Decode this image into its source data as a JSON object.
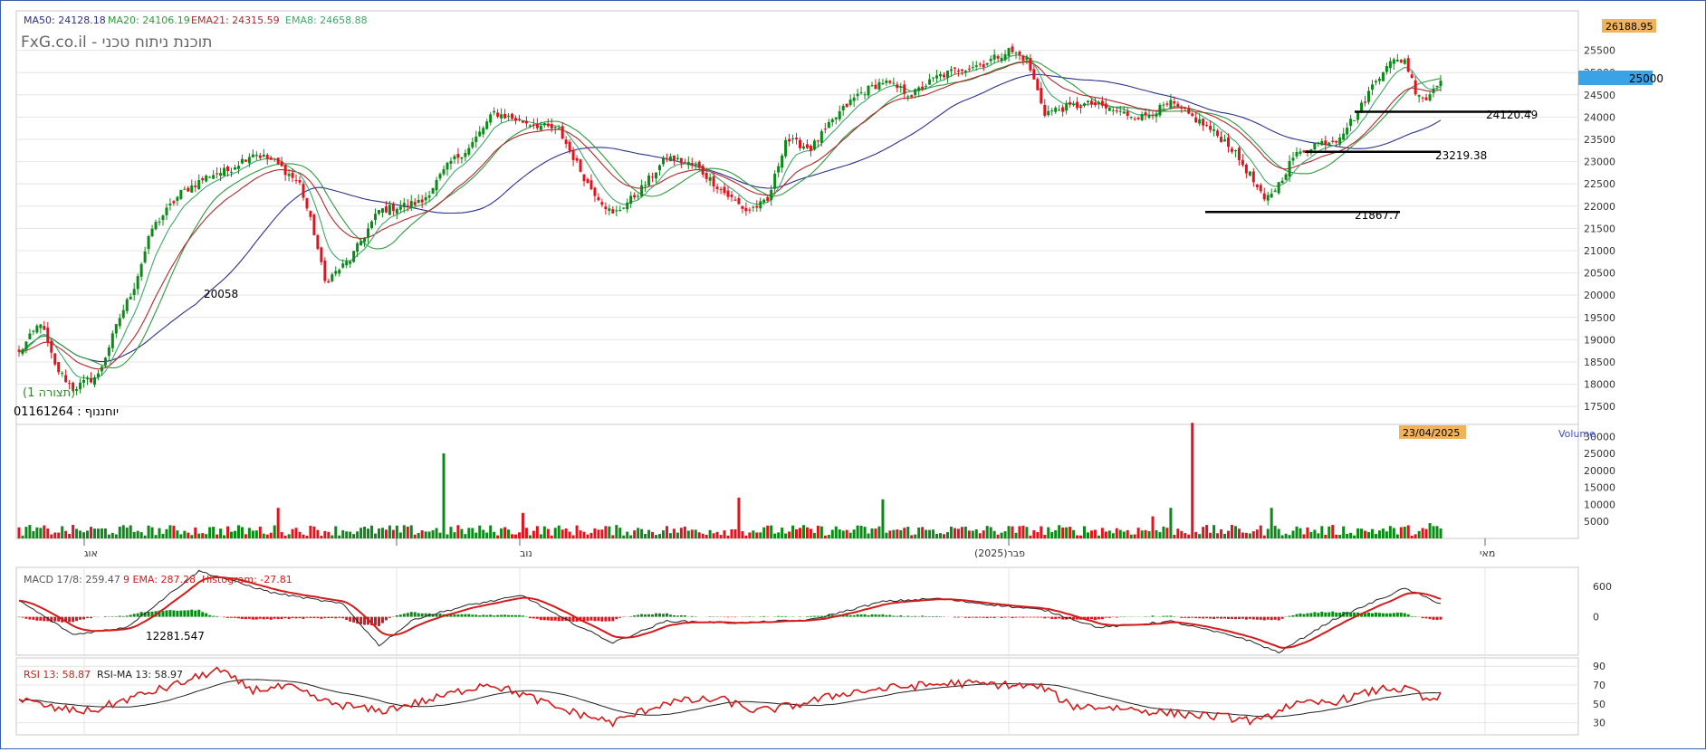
{
  "colors": {
    "bull": "#0a8a16",
    "bear": "#e0141e",
    "ma50": "#2b2f8c",
    "ma20": "#2e9a3e",
    "ema21": "#b0282e",
    "ema8": "#3fa86a",
    "macd": "#222222",
    "signal": "#d41a1a",
    "rsi": "#d41a1a",
    "rsi_ma": "#222222",
    "price_tag_bg": "#f0b25a",
    "last_tag_bg": "#3aa3e6",
    "grid": "#e4e4e4",
    "frame": "#3a5ea8"
  },
  "header": {
    "ma50": "MA50: 24128.18",
    "ma20": "MA20: 24106.19",
    "ema21": "EMA21: 24315.59",
    "ema8": "EMA8: 24658.88",
    "brand": "FxG.co.il - תוכנת ניתוח טכני"
  },
  "price_panel": {
    "top_value_tag": "26188.95",
    "last_price_tag": "25000",
    "y_ticks": [
      "25500",
      "25000",
      "24500",
      "24000",
      "23500",
      "23000",
      "22500",
      "22000",
      "21500",
      "21000",
      "20500",
      "20000",
      "19500",
      "19000",
      "18500",
      "18000",
      "17500"
    ],
    "lines": [
      {
        "label": "24120.49",
        "value": 24120.49
      },
      {
        "label": "23219.38",
        "value": 23219.38
      },
      {
        "label": "21867.7",
        "value": 21867.7
      }
    ],
    "annotation_low": "20058",
    "info_line1": "(תצורה 1)",
    "info_line2": "יוחננוף : 01161264"
  },
  "volume_panel": {
    "label": "Volume",
    "date_tag": "23/04/2025",
    "y_ticks": [
      "30000",
      "25000",
      "20000",
      "15000",
      "10000",
      "5000"
    ]
  },
  "x_axis": {
    "labels": [
      "אוג",
      "נוב",
      "פבר(2025)",
      "מאי"
    ]
  },
  "macd_panel": {
    "macd_label": "MACD 17/8: 259.47",
    "ema_label": "9 EMA: 287.28",
    "hist_label": "Histogram: -27.81",
    "y_ticks": [
      "600",
      "0"
    ],
    "annotation": "12281.547"
  },
  "rsi_panel": {
    "rsi_label": "RSI 13: 58.87",
    "rsi_ma_label": "RSI-MA 13: 58.97",
    "y_ticks": [
      "90",
      "70",
      "50",
      "30"
    ]
  },
  "chart_data": [
    {
      "type": "candlestick",
      "title": "",
      "ylim": [
        17000,
        26200
      ],
      "grid": true,
      "anchor_values": [
        [
          0,
          18700
        ],
        [
          6,
          19400
        ],
        [
          10,
          18400
        ],
        [
          15,
          17900
        ],
        [
          22,
          18200
        ],
        [
          28,
          19500
        ],
        [
          32,
          20200
        ],
        [
          37,
          21500
        ],
        [
          45,
          22300
        ],
        [
          53,
          22700
        ],
        [
          58,
          22800
        ],
        [
          65,
          23200
        ],
        [
          71,
          23000
        ],
        [
          78,
          22500
        ],
        [
          82,
          21400
        ],
        [
          85,
          20300
        ],
        [
          92,
          20800
        ],
        [
          100,
          21900
        ],
        [
          112,
          22100
        ],
        [
          120,
          23000
        ],
        [
          125,
          23300
        ],
        [
          132,
          24100
        ],
        [
          140,
          23900
        ],
        [
          150,
          23700
        ],
        [
          158,
          22500
        ],
        [
          165,
          21800
        ],
        [
          172,
          22300
        ],
        [
          180,
          23100
        ],
        [
          188,
          22900
        ],
        [
          196,
          22300
        ],
        [
          202,
          21900
        ],
        [
          208,
          22100
        ],
        [
          213,
          23500
        ],
        [
          220,
          23300
        ],
        [
          228,
          24100
        ],
        [
          233,
          24500
        ],
        [
          240,
          24800
        ],
        [
          248,
          24500
        ],
        [
          255,
          24900
        ],
        [
          262,
          25100
        ],
        [
          268,
          25200
        ],
        [
          275,
          25500
        ],
        [
          280,
          25300
        ],
        [
          285,
          24100
        ],
        [
          290,
          24200
        ],
        [
          298,
          24300
        ],
        [
          306,
          24100
        ],
        [
          312,
          24000
        ],
        [
          320,
          24300
        ],
        [
          328,
          23900
        ],
        [
          336,
          23400
        ],
        [
          342,
          22700
        ],
        [
          346,
          22100
        ],
        [
          350,
          22500
        ],
        [
          354,
          23100
        ],
        [
          360,
          23400
        ],
        [
          366,
          23500
        ],
        [
          372,
          24100
        ],
        [
          376,
          24700
        ],
        [
          380,
          25200
        ],
        [
          385,
          25300
        ],
        [
          388,
          24600
        ],
        [
          391,
          24400
        ],
        [
          395,
          24900
        ]
      ],
      "n_bars": 396
    },
    {
      "type": "bar",
      "title": "Volume",
      "ylim": [
        0,
        33000
      ],
      "spikes": [
        [
          72,
          9000
        ],
        [
          118,
          25000
        ],
        [
          140,
          7500
        ],
        [
          200,
          12000
        ],
        [
          240,
          11500
        ],
        [
          315,
          6500
        ],
        [
          320,
          9000
        ],
        [
          326,
          34000
        ],
        [
          348,
          9000
        ],
        [
          392,
          4500
        ]
      ]
    },
    {
      "type": "line",
      "title": "MACD 17/8",
      "ylim": [
        -700,
        900
      ],
      "macd_anchor_values": [
        [
          0,
          320
        ],
        [
          15,
          -350
        ],
        [
          30,
          -200
        ],
        [
          50,
          900
        ],
        [
          70,
          480
        ],
        [
          90,
          250
        ],
        [
          100,
          -560
        ],
        [
          110,
          -40
        ],
        [
          125,
          230
        ],
        [
          140,
          420
        ],
        [
          150,
          10
        ],
        [
          165,
          -510
        ],
        [
          180,
          -80
        ],
        [
          200,
          -120
        ],
        [
          220,
          -60
        ],
        [
          240,
          300
        ],
        [
          255,
          360
        ],
        [
          270,
          240
        ],
        [
          285,
          130
        ],
        [
          300,
          -210
        ],
        [
          320,
          -90
        ],
        [
          340,
          -420
        ],
        [
          350,
          -700
        ],
        [
          365,
          -60
        ],
        [
          385,
          560
        ],
        [
          395,
          259
        ]
      ]
    },
    {
      "type": "line",
      "title": "RSI 13",
      "ylim": [
        20,
        95
      ],
      "rsi_anchor_values": [
        [
          0,
          55
        ],
        [
          10,
          45
        ],
        [
          20,
          42
        ],
        [
          30,
          55
        ],
        [
          45,
          72
        ],
        [
          55,
          86
        ],
        [
          65,
          65
        ],
        [
          75,
          68
        ],
        [
          85,
          52
        ],
        [
          100,
          42
        ],
        [
          115,
          55
        ],
        [
          130,
          72
        ],
        [
          140,
          60
        ],
        [
          150,
          45
        ],
        [
          165,
          30
        ],
        [
          180,
          52
        ],
        [
          195,
          55
        ],
        [
          205,
          42
        ],
        [
          215,
          48
        ],
        [
          230,
          62
        ],
        [
          245,
          68
        ],
        [
          260,
          72
        ],
        [
          275,
          70
        ],
        [
          285,
          67
        ],
        [
          292,
          48
        ],
        [
          305,
          46
        ],
        [
          320,
          40
        ],
        [
          335,
          36
        ],
        [
          345,
          31
        ],
        [
          352,
          48
        ],
        [
          365,
          52
        ],
        [
          380,
          67
        ],
        [
          388,
          64
        ],
        [
          391,
          52
        ],
        [
          395,
          58
        ]
      ]
    }
  ]
}
